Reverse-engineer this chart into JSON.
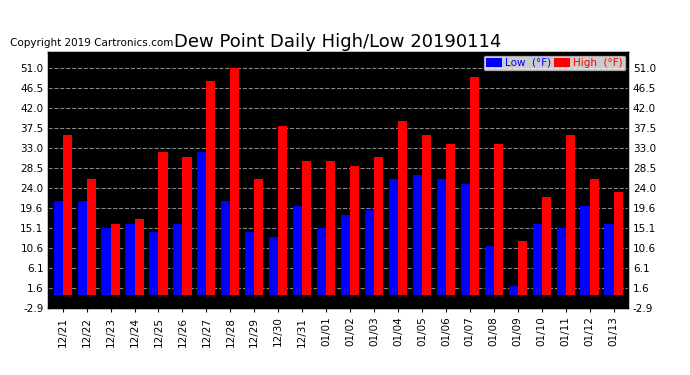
{
  "title": "Dew Point Daily High/Low 20190114",
  "copyright": "Copyright 2019 Cartronics.com",
  "categories": [
    "12/21",
    "12/22",
    "12/23",
    "12/24",
    "12/25",
    "12/26",
    "12/27",
    "12/28",
    "12/29",
    "12/30",
    "12/31",
    "01/01",
    "01/02",
    "01/03",
    "01/04",
    "01/05",
    "01/06",
    "01/07",
    "01/08",
    "01/09",
    "01/10",
    "01/11",
    "01/12",
    "01/13"
  ],
  "low_values": [
    21,
    21,
    15,
    16,
    14,
    16,
    32,
    21,
    14,
    13,
    20,
    15,
    18,
    19,
    26,
    27,
    26,
    25,
    11,
    2,
    16,
    15,
    20,
    16
  ],
  "high_values": [
    36,
    26,
    16,
    17,
    32,
    31,
    48,
    51,
    26,
    38,
    30,
    30,
    29,
    31,
    39,
    36,
    34,
    49,
    34,
    12,
    22,
    36,
    26,
    23
  ],
  "ylim": [
    -2.9,
    54.5
  ],
  "yticks": [
    -2.9,
    1.6,
    6.1,
    10.6,
    15.1,
    19.6,
    24.0,
    28.5,
    33.0,
    37.5,
    42.0,
    46.5,
    51.0
  ],
  "ytick_labels": [
    "-2.9",
    "1.6",
    "6.1",
    "10.6",
    "15.1",
    "19.6",
    "24.0",
    "28.5",
    "33.0",
    "37.5",
    "42.0",
    "46.5",
    "51.0"
  ],
  "bar_width": 0.38,
  "low_color": "#0000ff",
  "high_color": "#ff0000",
  "bg_color": "#ffffff",
  "plot_bg_color": "#000000",
  "grid_color": "#888888",
  "legend_low_label": "Low  (°F)",
  "legend_high_label": "High  (°F)",
  "legend_low_bg": "#0000ff",
  "legend_high_bg": "#ff0000",
  "title_fontsize": 13,
  "copyright_fontsize": 7.5,
  "tick_fontsize": 7.5
}
